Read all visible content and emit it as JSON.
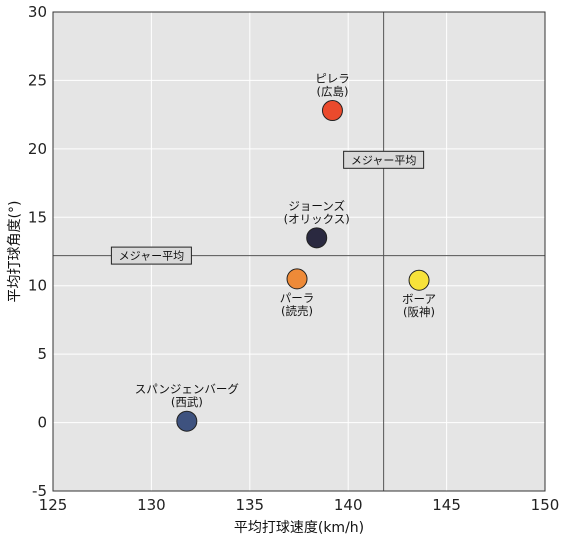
{
  "chart_data": {
    "type": "scatter",
    "xlabel": "平均打球速度(km/h)",
    "ylabel": "平均打球角度(°)",
    "xlim": [
      125,
      150
    ],
    "ylim": [
      -5,
      30
    ],
    "xticks": [
      125,
      130,
      135,
      140,
      145,
      150
    ],
    "yticks": [
      -5,
      0,
      5,
      10,
      15,
      20,
      25,
      30
    ],
    "grid": true,
    "reference_lines": {
      "x": 141.8,
      "y": 12.2,
      "label": "メジャー平均"
    },
    "points": [
      {
        "name": "ピレラ",
        "team": "(広島)",
        "x": 139.2,
        "y": 22.8,
        "color": "#ea4a2c",
        "label_pos": "above"
      },
      {
        "name": "ジョーンズ",
        "team": "(オリックス)",
        "x": 138.4,
        "y": 13.5,
        "color": "#2a2940",
        "label_pos": "above"
      },
      {
        "name": "パーラ",
        "team": "(読売)",
        "x": 137.4,
        "y": 10.5,
        "color": "#ee8a38",
        "label_pos": "below"
      },
      {
        "name": "ボーア",
        "team": "(阪神)",
        "x": 143.6,
        "y": 10.4,
        "color": "#f7e23a",
        "label_pos": "below"
      },
      {
        "name": "スパンジェンバーグ",
        "team": "(西武)",
        "x": 131.8,
        "y": 0.1,
        "color": "#3e527f",
        "label_pos": "above"
      }
    ]
  }
}
